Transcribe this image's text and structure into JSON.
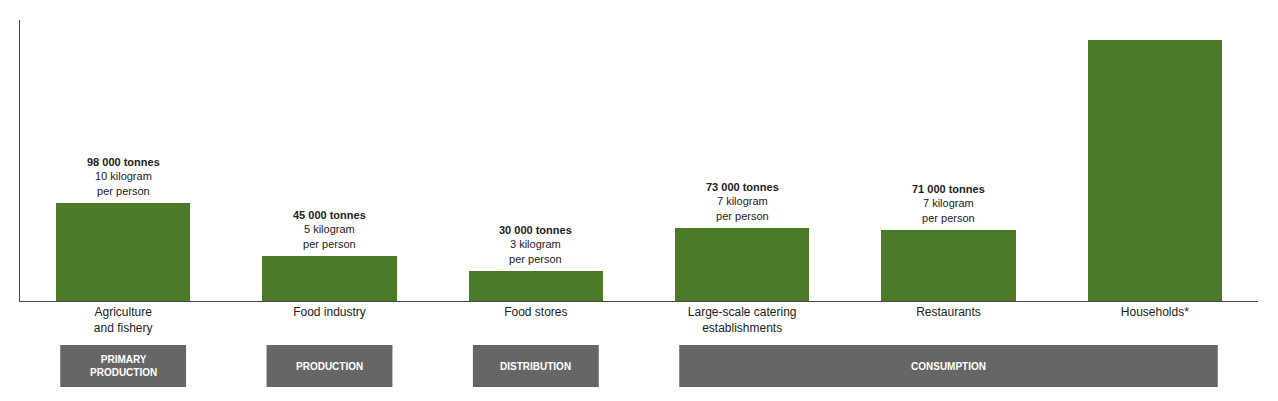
{
  "chart_data": {
    "type": "bar",
    "categories": [
      "Agriculture\nand fishery",
      "Food industry",
      "Food stores",
      "Large-scale catering\nestablishments",
      "Restaurants",
      "Households*"
    ],
    "values": [
      98000,
      45000,
      30000,
      73000,
      71000,
      260000
    ],
    "color": "#4d7a28",
    "ylim": [
      0,
      280000
    ],
    "grid": false,
    "tick_labels": "x",
    "annotations": [
      {
        "category": "Agriculture\nand fishery",
        "title": "98 000 tonnes",
        "text": "10 kilogram\nper person"
      },
      {
        "category": "Food industry",
        "title": "45 000 tonnes",
        "text": "5 kilogram\nper person"
      },
      {
        "category": "Food stores",
        "title": "30 000 tonnes",
        "text": "3 kilogram\nper person"
      },
      {
        "category": "Large-scale catering\nestablishments",
        "title": "73 000 tonnes",
        "text": "7 kilogram\nper person"
      },
      {
        "category": "Restaurants",
        "title": "71 000 tonnes",
        "text": "7 kilogram\nper person"
      }
    ],
    "phases": [
      {
        "label": "PRIMARY\nPRODUCTION",
        "categories": [
          "Agriculture\nand fishery"
        ],
        "color": "#666666",
        "text_color": "#ffffff"
      },
      {
        "label": "PRODUCTION",
        "categories": [
          "Food industry"
        ],
        "color": "#666666",
        "text_color": "#ffffff"
      },
      {
        "label": "DISTRIBUTION",
        "categories": [
          "Food stores"
        ],
        "color": "#666666",
        "text_color": "#ffffff"
      },
      {
        "label": "CONSUMPTION",
        "categories": [
          "Large-scale catering\nestablishments",
          "Restaurants",
          "Households*"
        ],
        "color": "#666666",
        "text_color": "#ffffff"
      }
    ]
  }
}
